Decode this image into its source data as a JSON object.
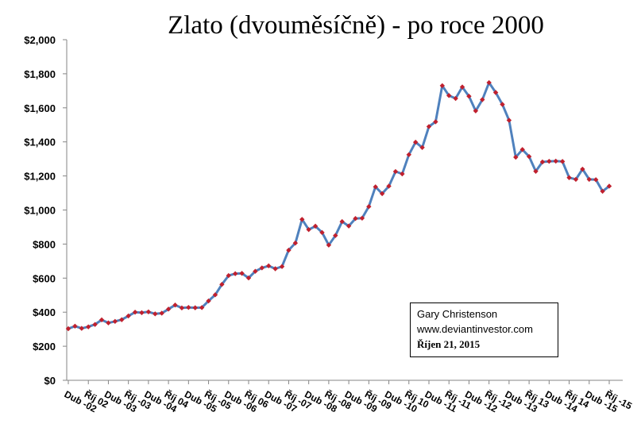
{
  "chart_data": {
    "type": "line",
    "title": "Zlato (dvouměsíčně)  - po roce 2000",
    "xlabel": "",
    "ylabel": "",
    "ylim": [
      0,
      2000
    ],
    "yticks": [
      "$0",
      "$200",
      "$400",
      "$600",
      "$800",
      "$1,000",
      "$1,200",
      "$1,400",
      "$1,600",
      "$1,800",
      "$2,000"
    ],
    "xticks": [
      {
        "label": "Dub -02",
        "index": 0
      },
      {
        "label": "Říj 02",
        "index": 3
      },
      {
        "label": "Dub -03",
        "index": 6
      },
      {
        "label": "Říj -03",
        "index": 9
      },
      {
        "label": "Dub -04",
        "index": 12
      },
      {
        "label": "Říj 04",
        "index": 15
      },
      {
        "label": "Dub -05",
        "index": 18
      },
      {
        "label": "Říj -05",
        "index": 21
      },
      {
        "label": "Dub -06",
        "index": 24
      },
      {
        "label": "Říj 06",
        "index": 27
      },
      {
        "label": "Dub -07",
        "index": 30
      },
      {
        "label": "Říj -07",
        "index": 33
      },
      {
        "label": "Dub -08",
        "index": 36
      },
      {
        "label": "Říj -08",
        "index": 39
      },
      {
        "label": "Dub -09",
        "index": 42
      },
      {
        "label": "Říj -09",
        "index": 45
      },
      {
        "label": "Dub -10",
        "index": 48
      },
      {
        "label": "Říj 10",
        "index": 51
      },
      {
        "label": "Dub -11",
        "index": 54
      },
      {
        "label": "Říj -11",
        "index": 57
      },
      {
        "label": "Dub -12",
        "index": 60
      },
      {
        "label": "Říj -12",
        "index": 63
      },
      {
        "label": "Dub -13",
        "index": 66
      },
      {
        "label": "Říj 13",
        "index": 69
      },
      {
        "label": "Dub -14",
        "index": 72
      },
      {
        "label": "Říj 14",
        "index": 75
      },
      {
        "label": "Dub -15",
        "index": 78
      },
      {
        "label": "Říj -15",
        "index": 81
      }
    ],
    "series": [
      {
        "values": [
          303,
          318,
          305,
          314,
          328,
          355,
          337,
          346,
          356,
          378,
          400,
          397,
          402,
          390,
          394,
          418,
          442,
          425,
          428,
          426,
          427,
          466,
          502,
          563,
          615,
          626,
          628,
          601,
          640,
          660,
          672,
          655,
          668,
          764,
          806,
          945,
          885,
          905,
          868,
          794,
          850,
          932,
          906,
          950,
          952,
          1020,
          1136,
          1096,
          1140,
          1226,
          1212,
          1325,
          1398,
          1367,
          1490,
          1518,
          1730,
          1672,
          1655,
          1722,
          1668,
          1582,
          1648,
          1748,
          1690,
          1620,
          1527,
          1310,
          1355,
          1314,
          1227,
          1282,
          1286,
          1287,
          1285,
          1190,
          1180,
          1240,
          1180,
          1178,
          1110,
          1140
        ]
      }
    ],
    "grid": false,
    "line_color": "#4f81bd",
    "marker_color": "#c0202e"
  },
  "note": {
    "line1": "Gary Christenson",
    "line2": "www.deviantinvestor.com",
    "line3": "Říjen 21, 2015"
  }
}
